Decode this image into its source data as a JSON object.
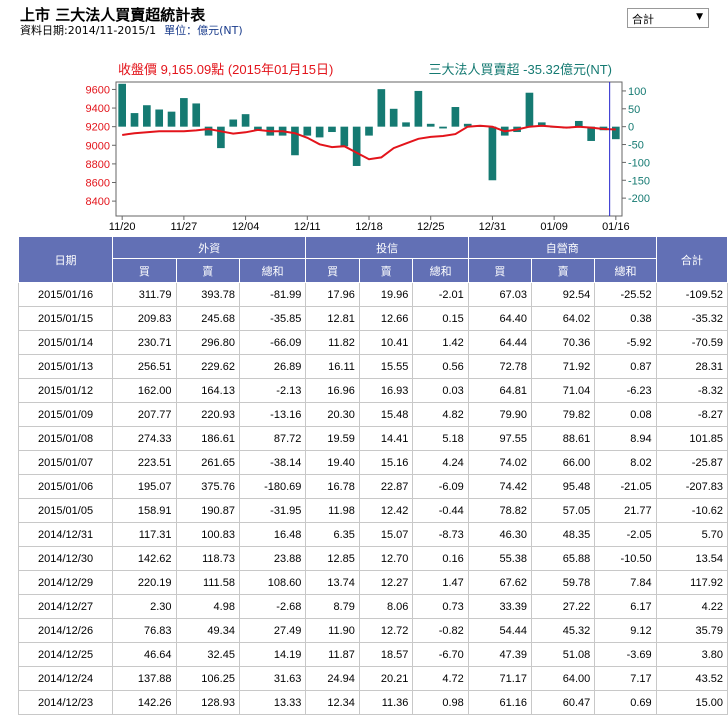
{
  "header": {
    "title": "上市 三大法人買賣超統計表",
    "date_label": "資料日期:2014/11-2015/1",
    "unit_label": "單位：億元(NT)"
  },
  "dropdown": {
    "selected": "合計"
  },
  "chart_data": {
    "type": "bar+line",
    "price_label": "收盤價 9,165.09點 (2015年01月15日)",
    "net_label": "三大法人買賣超 -35.32億元(NT)",
    "left_axis": {
      "ticks": [
        8400,
        8600,
        8800,
        9000,
        9200,
        9400,
        9600
      ],
      "range": [
        8240,
        9680
      ]
    },
    "right_axis": {
      "ticks": [
        100,
        50,
        0,
        -50,
        -100,
        -150,
        -200
      ],
      "range": [
        -250,
        125
      ]
    },
    "x_tick_labels": [
      "11/20",
      "11/27",
      "12/04",
      "12/11",
      "12/18",
      "12/25",
      "12/31",
      "01/09",
      "01/16"
    ],
    "x_tick_index": [
      0,
      5,
      10,
      15,
      20,
      25,
      30,
      35,
      40
    ],
    "net_values": [
      120,
      38,
      60,
      48,
      42,
      80,
      65,
      -25,
      -60,
      20,
      35,
      -10,
      -25,
      -25,
      -80,
      -25,
      -30,
      -15,
      -55,
      -110,
      -25,
      105,
      50,
      12,
      100,
      8,
      -5,
      55,
      8,
      2,
      -150,
      -25,
      -15,
      95,
      12,
      0,
      -5,
      16,
      -40,
      -10,
      -35
    ],
    "close_values": [
      9110,
      9130,
      9140,
      9150,
      9150,
      9150,
      9160,
      9175,
      9150,
      9125,
      9140,
      9165,
      9150,
      9150,
      9130,
      9080,
      9010,
      8980,
      8990,
      8920,
      8850,
      8870,
      8970,
      9020,
      9070,
      9090,
      9100,
      9120,
      9200,
      9210,
      9200,
      9150,
      9170,
      9200,
      9210,
      9200,
      9190,
      9200,
      9190,
      9175,
      9170
    ],
    "colors": {
      "bar": "#157a72",
      "line": "#e3141b",
      "marker": "#2222cc"
    }
  },
  "table": {
    "headers": {
      "date": "日期",
      "foreign": "外資",
      "trust": "投信",
      "dealer": "自營商",
      "total": "合計",
      "buy": "買",
      "sell": "賣",
      "net": "總和"
    },
    "rows": [
      [
        "2015/01/16",
        "311.79",
        "393.78",
        "-81.99",
        "17.96",
        "19.96",
        "-2.01",
        "67.03",
        "92.54",
        "-25.52",
        "-109.52"
      ],
      [
        "2015/01/15",
        "209.83",
        "245.68",
        "-35.85",
        "12.81",
        "12.66",
        "0.15",
        "64.40",
        "64.02",
        "0.38",
        "-35.32"
      ],
      [
        "2015/01/14",
        "230.71",
        "296.80",
        "-66.09",
        "11.82",
        "10.41",
        "1.42",
        "64.44",
        "70.36",
        "-5.92",
        "-70.59"
      ],
      [
        "2015/01/13",
        "256.51",
        "229.62",
        "26.89",
        "16.11",
        "15.55",
        "0.56",
        "72.78",
        "71.92",
        "0.87",
        "28.31"
      ],
      [
        "2015/01/12",
        "162.00",
        "164.13",
        "-2.13",
        "16.96",
        "16.93",
        "0.03",
        "64.81",
        "71.04",
        "-6.23",
        "-8.32"
      ],
      [
        "2015/01/09",
        "207.77",
        "220.93",
        "-13.16",
        "20.30",
        "15.48",
        "4.82",
        "79.90",
        "79.82",
        "0.08",
        "-8.27"
      ],
      [
        "2015/01/08",
        "274.33",
        "186.61",
        "87.72",
        "19.59",
        "14.41",
        "5.18",
        "97.55",
        "88.61",
        "8.94",
        "101.85"
      ],
      [
        "2015/01/07",
        "223.51",
        "261.65",
        "-38.14",
        "19.40",
        "15.16",
        "4.24",
        "74.02",
        "66.00",
        "8.02",
        "-25.87"
      ],
      [
        "2015/01/06",
        "195.07",
        "375.76",
        "-180.69",
        "16.78",
        "22.87",
        "-6.09",
        "74.42",
        "95.48",
        "-21.05",
        "-207.83"
      ],
      [
        "2015/01/05",
        "158.91",
        "190.87",
        "-31.95",
        "11.98",
        "12.42",
        "-0.44",
        "78.82",
        "57.05",
        "21.77",
        "-10.62"
      ],
      [
        "2014/12/31",
        "117.31",
        "100.83",
        "16.48",
        "6.35",
        "15.07",
        "-8.73",
        "46.30",
        "48.35",
        "-2.05",
        "5.70"
      ],
      [
        "2014/12/30",
        "142.62",
        "118.73",
        "23.88",
        "12.85",
        "12.70",
        "0.16",
        "55.38",
        "65.88",
        "-10.50",
        "13.54"
      ],
      [
        "2014/12/29",
        "220.19",
        "111.58",
        "108.60",
        "13.74",
        "12.27",
        "1.47",
        "67.62",
        "59.78",
        "7.84",
        "117.92"
      ],
      [
        "2014/12/27",
        "2.30",
        "4.98",
        "-2.68",
        "8.79",
        "8.06",
        "0.73",
        "33.39",
        "27.22",
        "6.17",
        "4.22"
      ],
      [
        "2014/12/26",
        "76.83",
        "49.34",
        "27.49",
        "11.90",
        "12.72",
        "-0.82",
        "54.44",
        "45.32",
        "9.12",
        "35.79"
      ],
      [
        "2014/12/25",
        "46.64",
        "32.45",
        "14.19",
        "11.87",
        "18.57",
        "-6.70",
        "47.39",
        "51.08",
        "-3.69",
        "3.80"
      ],
      [
        "2014/12/24",
        "137.88",
        "106.25",
        "31.63",
        "24.94",
        "20.21",
        "4.72",
        "71.17",
        "64.00",
        "7.17",
        "43.52"
      ],
      [
        "2014/12/23",
        "142.26",
        "128.93",
        "13.33",
        "12.34",
        "11.36",
        "0.98",
        "61.16",
        "60.47",
        "0.69",
        "15.00"
      ]
    ]
  }
}
